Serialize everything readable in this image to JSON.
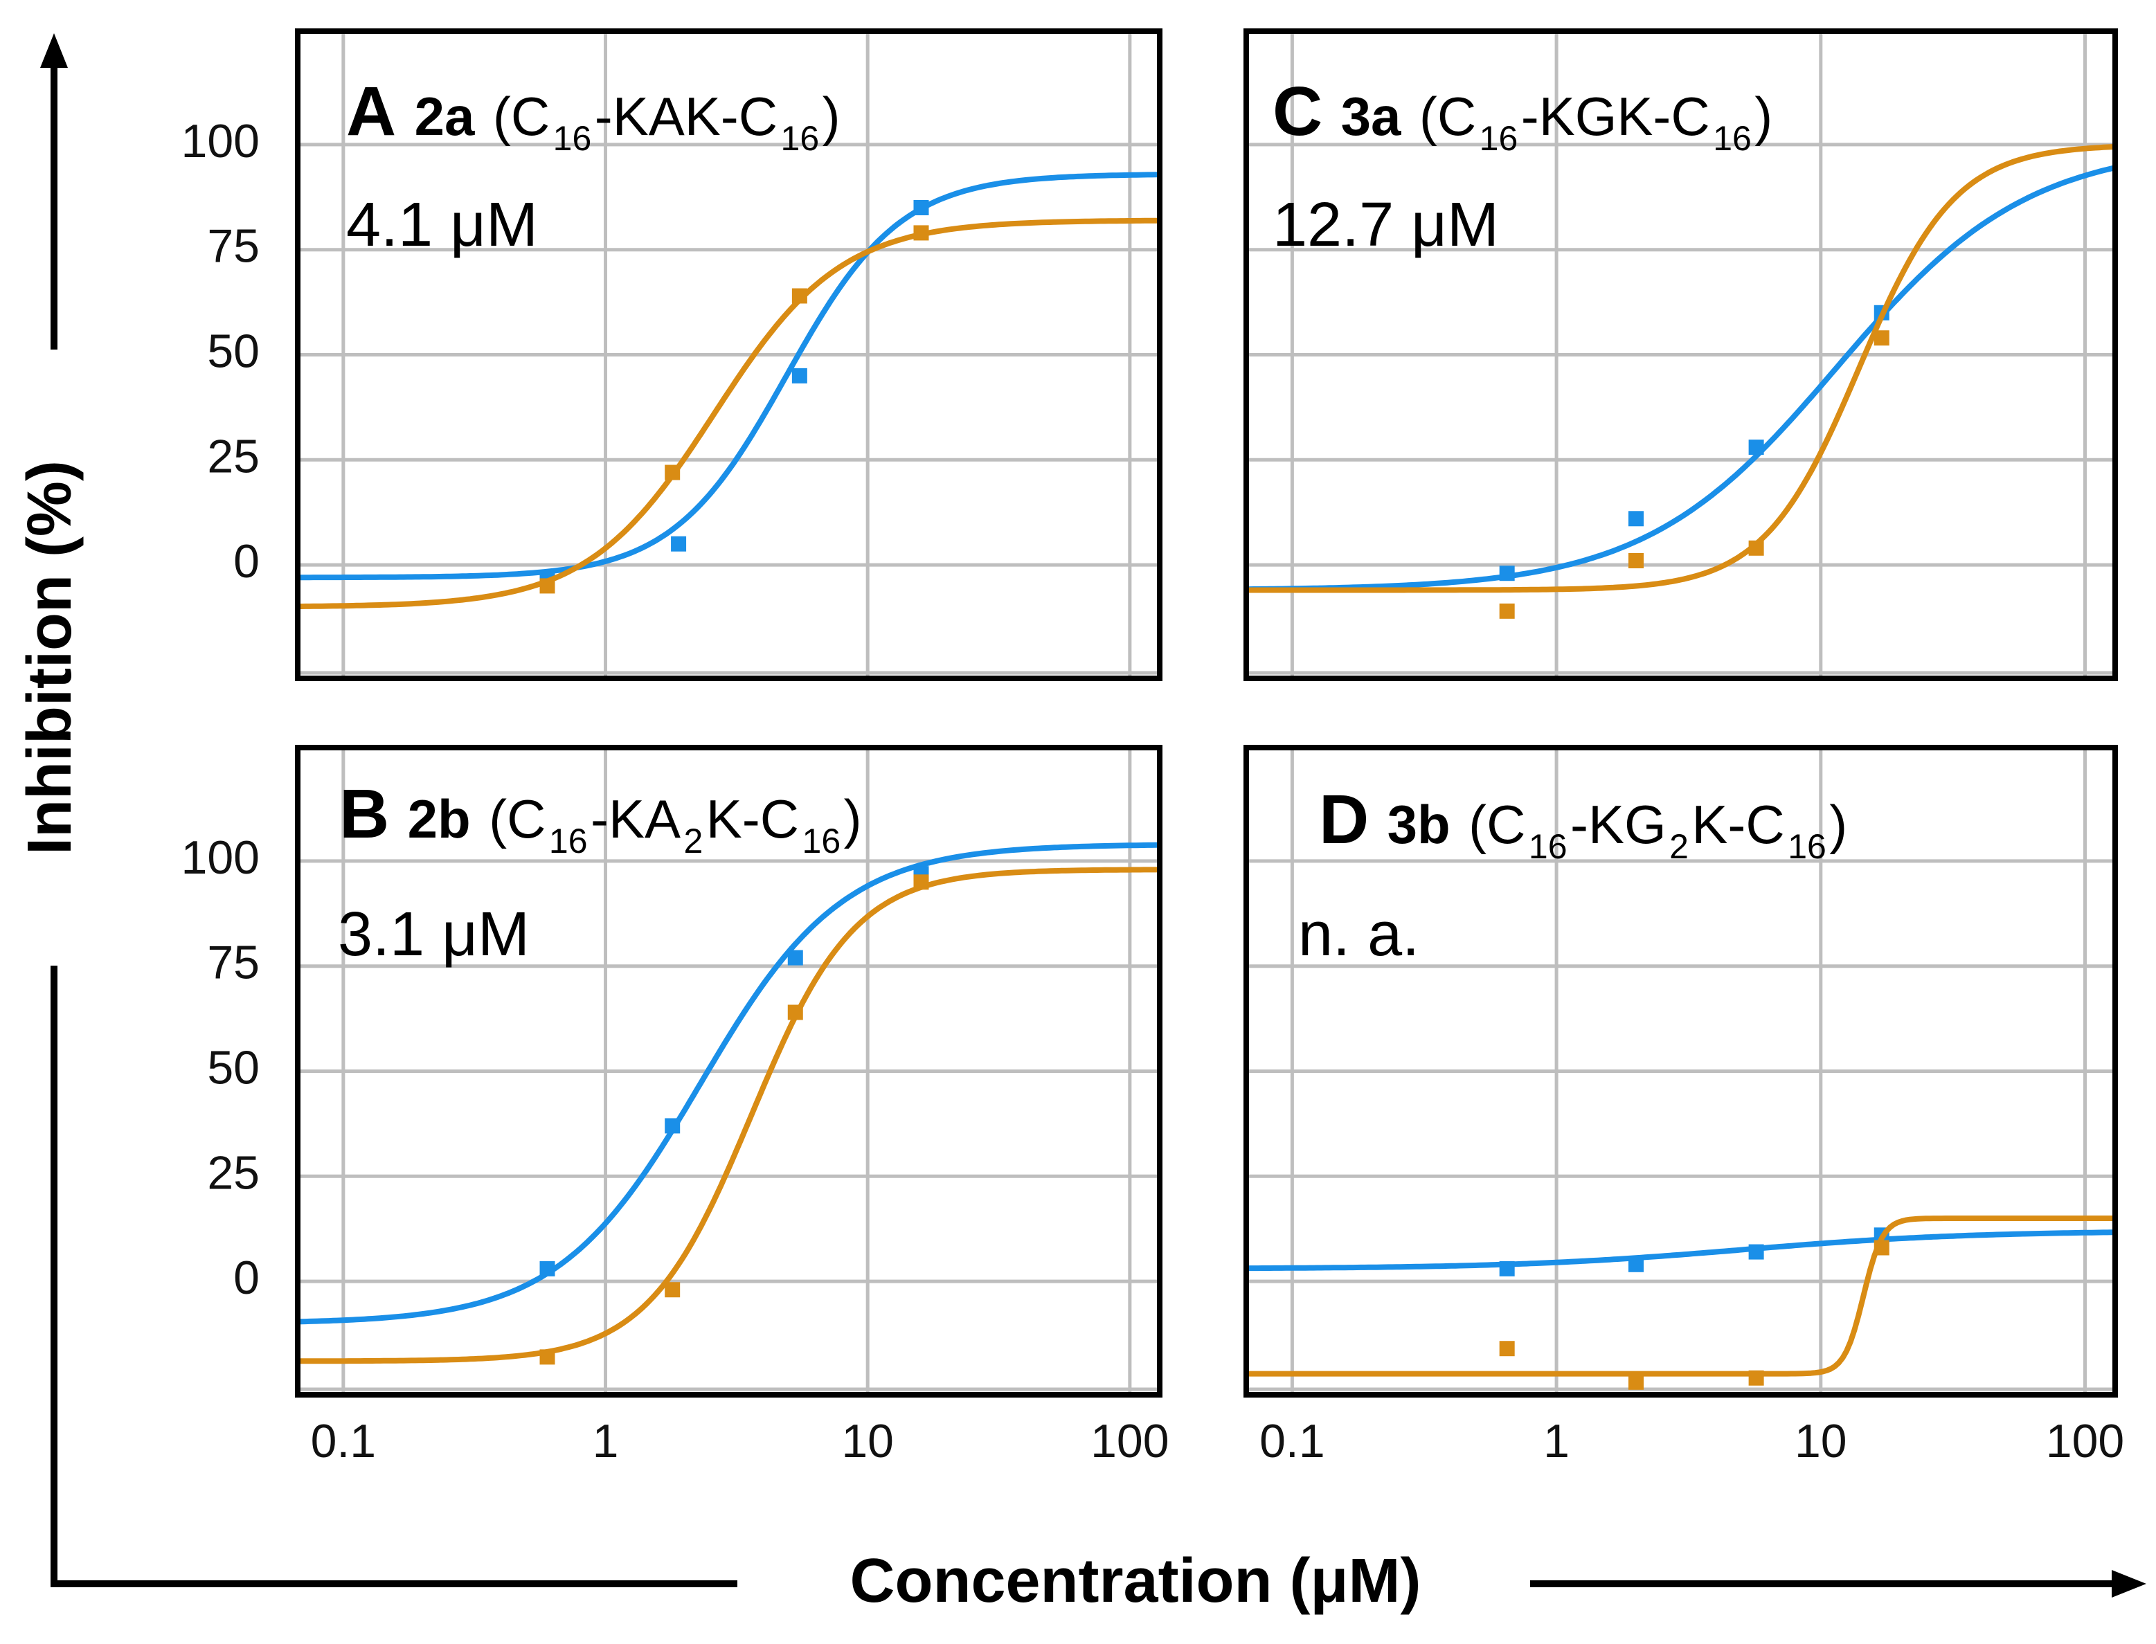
{
  "figure": {
    "ylabel": "Inhibition (%)",
    "xlabel": "Concentration (μM)"
  },
  "colors": {
    "blue": "#1a8fe8",
    "orange": "#d98c14",
    "grid": "#bebebe",
    "frame": "#000000"
  },
  "chart_data": [
    {
      "type": "line",
      "panel": "A",
      "compound": "2a",
      "formula_parts": [
        "(C",
        "16",
        "-KAK-C",
        "16",
        ")"
      ],
      "value_label": "4.1 μM",
      "xscale": "log",
      "xlim": [
        0.067,
        130
      ],
      "ylim": [
        -27,
        127
      ],
      "xticks": [
        0.1,
        1,
        10,
        100
      ],
      "xtick_labels": [
        "0.1",
        "1",
        "10",
        "100"
      ],
      "yticks": [
        0,
        25,
        50,
        75,
        100
      ],
      "ytick_labels": [
        "0",
        "25",
        "50",
        "75",
        "100"
      ],
      "show_x_tick_labels": false,
      "show_y_tick_labels": true,
      "series": [
        {
          "name": "blue",
          "color": "blue",
          "fit": {
            "bottom": -3,
            "top": 93,
            "ec50": 4.9,
            "hill": 2.0
          },
          "points": [
            {
              "x": 0.6,
              "y": -3
            },
            {
              "x": 1.9,
              "y": 5
            },
            {
              "x": 5.5,
              "y": 45
            },
            {
              "x": 16,
              "y": 85
            }
          ]
        },
        {
          "name": "orange",
          "color": "orange",
          "fit": {
            "bottom": -10,
            "top": 82,
            "ec50": 2.6,
            "hill": 1.8
          },
          "points": [
            {
              "x": 0.6,
              "y": -5
            },
            {
              "x": 1.8,
              "y": 22
            },
            {
              "x": 5.5,
              "y": 64
            },
            {
              "x": 16,
              "y": 79
            }
          ]
        }
      ]
    },
    {
      "type": "line",
      "panel": "B",
      "compound": "2b",
      "formula_parts": [
        "(C",
        "16",
        "-KA",
        "2",
        "K-C",
        "16",
        ")"
      ],
      "value_label": "3.1 μM",
      "xscale": "log",
      "xlim": [
        0.067,
        130
      ],
      "ylim": [
        -27,
        127
      ],
      "xticks": [
        0.1,
        1,
        10,
        100
      ],
      "xtick_labels": [
        "0.1",
        "1",
        "10",
        "100"
      ],
      "yticks": [
        0,
        25,
        50,
        75,
        100
      ],
      "ytick_labels": [
        "0",
        "25",
        "50",
        "75",
        "100"
      ],
      "show_x_tick_labels": true,
      "show_y_tick_labels": true,
      "series": [
        {
          "name": "blue",
          "color": "blue",
          "fit": {
            "bottom": -10,
            "top": 104,
            "ec50": 2.3,
            "hill": 1.6
          },
          "points": [
            {
              "x": 0.6,
              "y": 3
            },
            {
              "x": 1.8,
              "y": 37
            },
            {
              "x": 5.3,
              "y": 77
            },
            {
              "x": 16,
              "y": 97
            }
          ]
        },
        {
          "name": "orange",
          "color": "orange",
          "fit": {
            "bottom": -19,
            "top": 98,
            "ec50": 3.6,
            "hill": 2.2
          },
          "points": [
            {
              "x": 0.6,
              "y": -18
            },
            {
              "x": 1.8,
              "y": -2
            },
            {
              "x": 5.3,
              "y": 64
            },
            {
              "x": 16,
              "y": 95
            }
          ]
        }
      ]
    },
    {
      "type": "line",
      "panel": "C",
      "compound": "3a",
      "formula_parts": [
        "(C",
        "16",
        "-KGK-C",
        "16",
        ")"
      ],
      "value_label": "12.7 μM",
      "xscale": "log",
      "xlim": [
        0.067,
        130
      ],
      "ylim": [
        -27,
        127
      ],
      "xticks": [
        0.1,
        1,
        10,
        100
      ],
      "xtick_labels": [
        "0.1",
        "1",
        "10",
        "100"
      ],
      "yticks": [
        0,
        25,
        50,
        75,
        100
      ],
      "ytick_labels": [
        "0",
        "25",
        "50",
        "75",
        "100"
      ],
      "show_x_tick_labels": false,
      "show_y_tick_labels": false,
      "series": [
        {
          "name": "blue",
          "color": "blue",
          "fit": {
            "bottom": -6,
            "top": 100,
            "ec50": 11.5,
            "hill": 1.2
          },
          "points": [
            {
              "x": 0.65,
              "y": -2
            },
            {
              "x": 2.0,
              "y": 11
            },
            {
              "x": 5.7,
              "y": 28
            },
            {
              "x": 17,
              "y": 60
            }
          ]
        },
        {
          "name": "orange",
          "color": "orange",
          "fit": {
            "bottom": -6,
            "top": 100,
            "ec50": 14,
            "hill": 2.4
          },
          "points": [
            {
              "x": 0.65,
              "y": -11
            },
            {
              "x": 2.0,
              "y": 1
            },
            {
              "x": 5.7,
              "y": 4
            },
            {
              "x": 17,
              "y": 54
            }
          ]
        }
      ]
    },
    {
      "type": "line",
      "panel": "D",
      "compound": "3b",
      "formula_parts": [
        "(C",
        "16",
        "-KG",
        "2",
        "K-C",
        "16",
        ")"
      ],
      "value_label": "n. a.",
      "xscale": "log",
      "xlim": [
        0.067,
        130
      ],
      "ylim": [
        -27,
        127
      ],
      "xticks": [
        0.1,
        1,
        10,
        100
      ],
      "xtick_labels": [
        "0.1",
        "1",
        "10",
        "100"
      ],
      "yticks": [
        0,
        25,
        50,
        75,
        100
      ],
      "ytick_labels": [
        "0",
        "25",
        "50",
        "75",
        "100"
      ],
      "show_x_tick_labels": true,
      "show_y_tick_labels": false,
      "series": [
        {
          "name": "blue",
          "color": "blue",
          "fit": {
            "bottom": 3,
            "top": 12,
            "ec50": 5,
            "hill": 1.0
          },
          "points": [
            {
              "x": 0.65,
              "y": 3
            },
            {
              "x": 2.0,
              "y": 4
            },
            {
              "x": 5.7,
              "y": 7
            },
            {
              "x": 17,
              "y": 11
            }
          ]
        },
        {
          "name": "orange",
          "color": "orange",
          "fit": {
            "bottom": -22,
            "top": 15,
            "ec50": 14.5,
            "hill": 12
          },
          "points": [
            {
              "x": 0.65,
              "y": -16
            },
            {
              "x": 2.0,
              "y": -24
            },
            {
              "x": 5.7,
              "y": -23
            },
            {
              "x": 17,
              "y": 8
            }
          ]
        }
      ]
    }
  ]
}
